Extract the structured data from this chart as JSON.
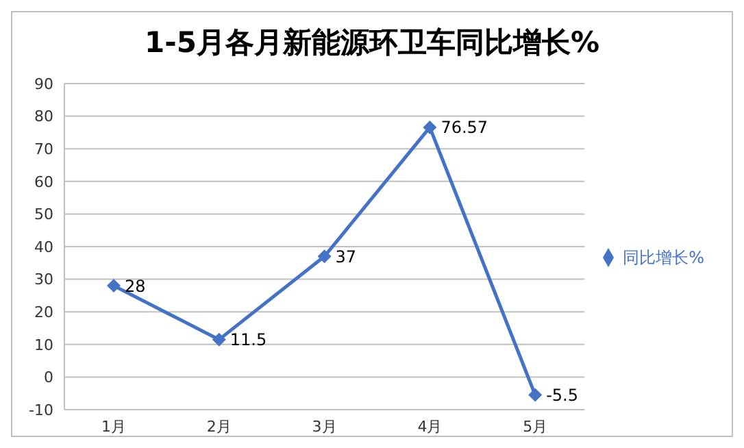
{
  "chart_data": {
    "type": "line",
    "title": "1-5月各月新能源环卫车同比增长%",
    "categories": [
      "1月",
      "2月",
      "3月",
      "4月",
      "5月"
    ],
    "series": [
      {
        "name": "同比增长%",
        "color": "#4472c4",
        "values": [
          28,
          11.5,
          37,
          76.57,
          -5.5
        ]
      }
    ],
    "ylim": [
      -10,
      90
    ],
    "yticks": [
      -10,
      0,
      10,
      20,
      30,
      40,
      50,
      60,
      70,
      80,
      90
    ],
    "grid": "y",
    "legend": "right",
    "marker": "diamond",
    "data_labels": true
  }
}
